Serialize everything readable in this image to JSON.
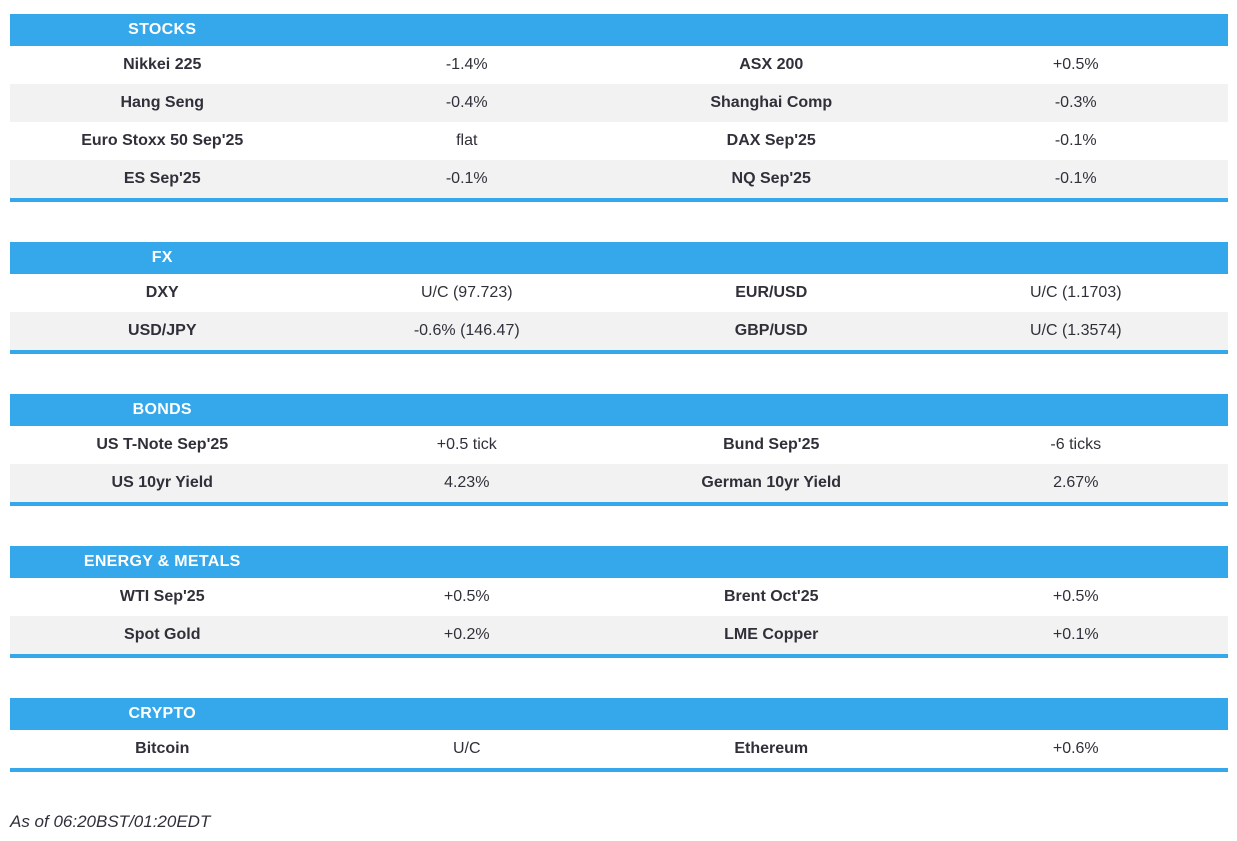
{
  "colors": {
    "accent": "#35a8ec",
    "row_stripe": "#f2f2f2",
    "text": "#30303a",
    "header_text": "#ffffff"
  },
  "sections": [
    {
      "title": "STOCKS",
      "rows": [
        {
          "name1": "Nikkei 225",
          "value1": "-1.4%",
          "name2": "ASX 200",
          "value2": "+0.5%"
        },
        {
          "name1": "Hang Seng",
          "value1": "-0.4%",
          "name2": "Shanghai Comp",
          "value2": "-0.3%"
        },
        {
          "name1": "Euro Stoxx 50 Sep'25",
          "value1": "flat",
          "name2": "DAX Sep'25",
          "value2": "-0.1%"
        },
        {
          "name1": "ES Sep'25",
          "value1": "-0.1%",
          "name2": "NQ Sep'25",
          "value2": "-0.1%"
        }
      ]
    },
    {
      "title": "FX",
      "rows": [
        {
          "name1": "DXY",
          "value1": "U/C (97.723)",
          "name2": "EUR/USD",
          "value2": "U/C (1.1703)"
        },
        {
          "name1": "USD/JPY",
          "value1": "-0.6% (146.47)",
          "name2": "GBP/USD",
          "value2": "U/C (1.3574)"
        }
      ]
    },
    {
      "title": "BONDS",
      "rows": [
        {
          "name1": "US T-Note Sep'25",
          "value1": "+0.5 tick",
          "name2": "Bund Sep'25",
          "value2": "-6 ticks"
        },
        {
          "name1": "US 10yr Yield",
          "value1": "4.23%",
          "name2": "German 10yr Yield",
          "value2": "2.67%"
        }
      ]
    },
    {
      "title": "ENERGY & METALS",
      "rows": [
        {
          "name1": "WTI Sep'25",
          "value1": "+0.5%",
          "name2": "Brent Oct'25",
          "value2": "+0.5%"
        },
        {
          "name1": "Spot Gold",
          "value1": "+0.2%",
          "name2": "LME Copper",
          "value2": "+0.1%"
        }
      ]
    },
    {
      "title": "CRYPTO",
      "rows": [
        {
          "name1": "Bitcoin",
          "value1": "U/C",
          "name2": "Ethereum",
          "value2": "+0.6%"
        }
      ]
    }
  ],
  "footer": {
    "as_of": "As of 06:20BST/01:20EDT"
  }
}
